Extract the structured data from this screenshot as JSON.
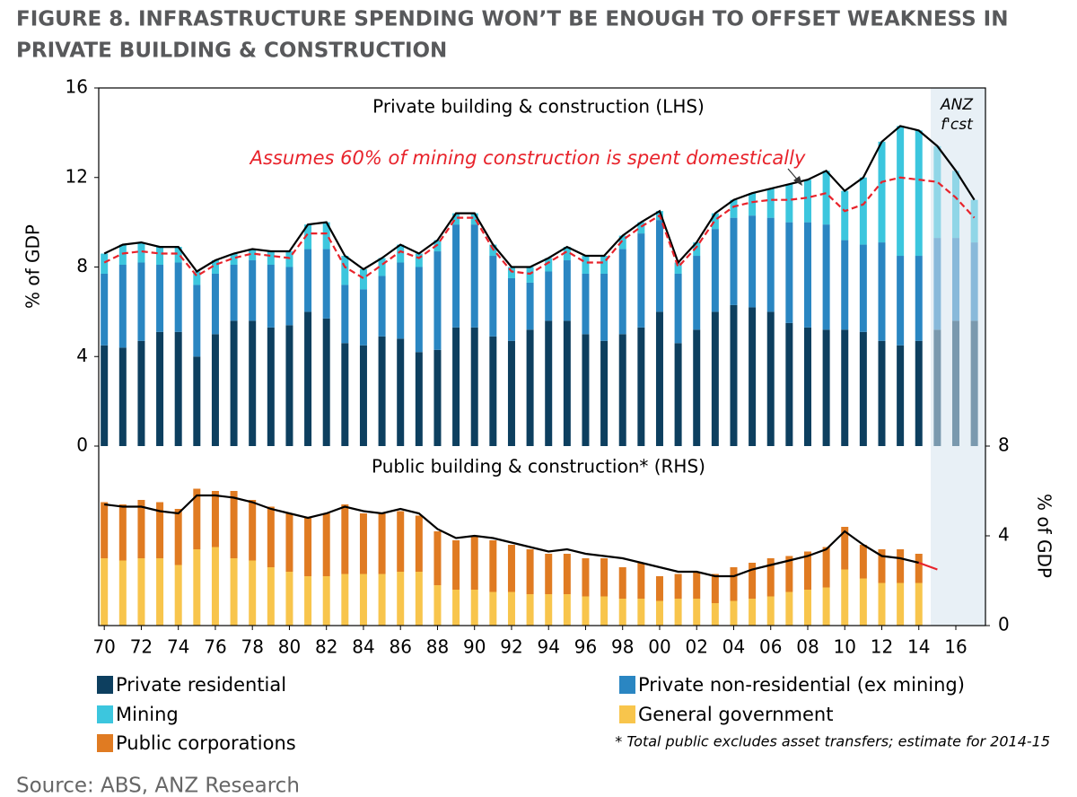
{
  "chart_data": [
    {
      "type": "bar",
      "title": "Private building & construction (LHS)",
      "annotation": "Assumes 60% of mining construction is spent domestically",
      "forecast_label": [
        "ANZ",
        "f'cst"
      ],
      "y_label": "% of GDP",
      "x": [
        1970,
        1971,
        1972,
        1973,
        1974,
        1975,
        1976,
        1977,
        1978,
        1979,
        1980,
        1981,
        1982,
        1983,
        1984,
        1985,
        1986,
        1987,
        1988,
        1989,
        1990,
        1991,
        1992,
        1993,
        1994,
        1995,
        1996,
        1997,
        1998,
        1999,
        2000,
        2001,
        2002,
        2003,
        2004,
        2005,
        2006,
        2007,
        2008,
        2009,
        2010,
        2011,
        2012,
        2013,
        2014,
        2015,
        2016,
        2017
      ],
      "ylim": [
        0,
        16
      ],
      "yticks": [
        0,
        4,
        8,
        12,
        16
      ],
      "series": [
        {
          "name": "Private residential",
          "color": "#0d3f5f",
          "values": [
            4.5,
            4.4,
            4.7,
            5.1,
            5.1,
            4.0,
            5.0,
            5.6,
            5.6,
            5.3,
            5.4,
            6.0,
            5.7,
            4.6,
            4.5,
            4.9,
            4.8,
            4.2,
            4.3,
            5.3,
            5.3,
            4.9,
            4.7,
            5.2,
            5.6,
            5.6,
            5.0,
            4.7,
            5.0,
            5.3,
            6.0,
            4.6,
            5.2,
            6.0,
            6.3,
            6.2,
            6.0,
            5.5,
            5.3,
            5.2,
            5.2,
            5.1,
            4.7,
            4.5,
            4.7,
            5.2,
            5.6,
            5.6
          ]
        },
        {
          "name": "Private non-residential (ex mining)",
          "color": "#2a86c2",
          "values": [
            3.2,
            3.7,
            3.5,
            3.0,
            3.1,
            3.2,
            2.7,
            2.5,
            2.7,
            2.8,
            2.6,
            2.8,
            3.1,
            2.6,
            2.5,
            2.7,
            3.4,
            3.8,
            4.4,
            4.6,
            4.6,
            3.6,
            2.8,
            2.1,
            2.2,
            2.7,
            2.7,
            3.0,
            3.8,
            4.2,
            4.1,
            3.1,
            3.3,
            3.7,
            3.9,
            4.1,
            4.2,
            4.5,
            4.7,
            4.7,
            4.0,
            3.9,
            4.4,
            4.0,
            3.8,
            4.1,
            3.7,
            3.5
          ]
        },
        {
          "name": "Mining",
          "color": "#3cc6de",
          "values": [
            0.9,
            0.9,
            0.9,
            0.8,
            0.7,
            0.6,
            0.6,
            0.5,
            0.5,
            0.6,
            0.7,
            1.1,
            1.2,
            1.3,
            0.9,
            0.8,
            0.8,
            0.6,
            0.5,
            0.5,
            0.5,
            0.5,
            0.5,
            0.7,
            0.6,
            0.6,
            0.8,
            0.8,
            0.6,
            0.5,
            0.4,
            0.5,
            0.6,
            0.7,
            0.8,
            1.0,
            1.3,
            1.7,
            1.9,
            2.4,
            2.2,
            3.0,
            4.5,
            5.8,
            5.6,
            4.1,
            3.0,
            1.9
          ]
        }
      ],
      "lines": [
        {
          "color": "#000000",
          "values": [
            8.6,
            9.0,
            9.1,
            8.9,
            8.9,
            7.8,
            8.3,
            8.6,
            8.8,
            8.7,
            8.7,
            9.9,
            10.0,
            8.5,
            7.9,
            8.4,
            9.0,
            8.6,
            9.2,
            10.4,
            10.4,
            9.0,
            8.0,
            8.0,
            8.4,
            8.9,
            8.5,
            8.5,
            9.4,
            10.0,
            10.5,
            8.2,
            9.1,
            10.4,
            11.0,
            11.3,
            11.5,
            11.7,
            11.9,
            12.3,
            11.4,
            12.0,
            13.6,
            14.3,
            14.1,
            13.4,
            12.3,
            11.0
          ]
        },
        {
          "color": "#e8232b",
          "dash": true,
          "values": [
            8.2,
            8.6,
            8.7,
            8.6,
            8.6,
            7.6,
            8.1,
            8.4,
            8.6,
            8.5,
            8.4,
            9.5,
            9.5,
            8.0,
            7.5,
            8.1,
            8.7,
            8.4,
            9.0,
            10.2,
            10.2,
            8.8,
            7.8,
            7.7,
            8.2,
            8.7,
            8.2,
            8.2,
            9.2,
            9.8,
            10.3,
            8.0,
            8.9,
            10.1,
            10.7,
            10.9,
            11.0,
            11.0,
            11.1,
            11.3,
            10.5,
            10.8,
            11.8,
            12.0,
            11.9,
            11.8,
            11.1,
            10.2
          ]
        }
      ]
    },
    {
      "type": "bar",
      "title": "Public building & construction* (RHS)",
      "y_label": "% of GDP",
      "x": [
        1970,
        1971,
        1972,
        1973,
        1974,
        1975,
        1976,
        1977,
        1978,
        1979,
        1980,
        1981,
        1982,
        1983,
        1984,
        1985,
        1986,
        1987,
        1988,
        1989,
        1990,
        1991,
        1992,
        1993,
        1994,
        1995,
        1996,
        1997,
        1998,
        1999,
        2000,
        2001,
        2002,
        2003,
        2004,
        2005,
        2006,
        2007,
        2008,
        2009,
        2010,
        2011,
        2012,
        2013,
        2014
      ],
      "xlim": [
        1969.7,
        2017.6
      ],
      "xticks": [
        {
          "value": 1970,
          "label": "70"
        },
        {
          "value": 1972,
          "label": "72"
        },
        {
          "value": 1974,
          "label": "74"
        },
        {
          "value": 1976,
          "label": "76"
        },
        {
          "value": 1978,
          "label": "78"
        },
        {
          "value": 1980,
          "label": "80"
        },
        {
          "value": 1982,
          "label": "82"
        },
        {
          "value": 1984,
          "label": "84"
        },
        {
          "value": 1986,
          "label": "86"
        },
        {
          "value": 1988,
          "label": "88"
        },
        {
          "value": 1990,
          "label": "90"
        },
        {
          "value": 1992,
          "label": "92"
        },
        {
          "value": 1994,
          "label": "94"
        },
        {
          "value": 1996,
          "label": "96"
        },
        {
          "value": 1998,
          "label": "98"
        },
        {
          "value": 2000,
          "label": "00"
        },
        {
          "value": 2002,
          "label": "02"
        },
        {
          "value": 2004,
          "label": "04"
        },
        {
          "value": 2006,
          "label": "06"
        },
        {
          "value": 2008,
          "label": "08"
        },
        {
          "value": 2010,
          "label": "10"
        },
        {
          "value": 2012,
          "label": "12"
        },
        {
          "value": 2014,
          "label": "14"
        },
        {
          "value": 2016,
          "label": "16"
        }
      ],
      "y2lim": [
        0,
        8
      ],
      "y2ticks": [
        0,
        4,
        8
      ],
      "series": [
        {
          "name": "General government",
          "color": "#f8c54c",
          "axis": "y2",
          "values": [
            3.0,
            2.9,
            3.0,
            3.0,
            2.7,
            3.4,
            3.5,
            3.0,
            2.9,
            2.6,
            2.4,
            2.2,
            2.2,
            2.3,
            2.3,
            2.3,
            2.4,
            2.4,
            1.8,
            1.6,
            1.6,
            1.5,
            1.5,
            1.4,
            1.4,
            1.4,
            1.3,
            1.3,
            1.2,
            1.2,
            1.1,
            1.2,
            1.2,
            1.0,
            1.1,
            1.2,
            1.3,
            1.5,
            1.6,
            1.7,
            2.5,
            2.1,
            1.9,
            1.9,
            1.9
          ]
        },
        {
          "name": "Public corporations",
          "color": "#e07b22",
          "axis": "y2",
          "values": [
            2.5,
            2.5,
            2.6,
            2.5,
            2.5,
            2.7,
            2.5,
            3.0,
            2.7,
            2.7,
            2.6,
            2.6,
            2.8,
            3.1,
            2.7,
            2.7,
            2.7,
            2.5,
            2.4,
            2.2,
            2.4,
            2.3,
            2.1,
            2.0,
            1.8,
            1.8,
            1.7,
            1.7,
            1.4,
            1.6,
            1.1,
            1.1,
            1.2,
            1.3,
            1.5,
            1.6,
            1.7,
            1.6,
            1.7,
            1.8,
            1.9,
            1.5,
            1.5,
            1.5,
            1.3
          ]
        }
      ],
      "lines": [
        {
          "color": "#000000",
          "values": [
            5.4,
            5.3,
            5.3,
            5.1,
            5.0,
            5.8,
            5.8,
            5.7,
            5.5,
            5.2,
            5.0,
            4.8,
            5.0,
            5.3,
            5.1,
            5.0,
            5.2,
            5.0,
            4.3,
            3.9,
            4.0,
            3.9,
            3.7,
            3.5,
            3.3,
            3.4,
            3.2,
            3.1,
            3.0,
            2.8,
            2.6,
            2.4,
            2.4,
            2.2,
            2.2,
            2.5,
            2.7,
            2.9,
            3.1,
            3.4,
            4.2,
            3.6,
            3.1,
            3.0,
            2.8
          ]
        },
        {
          "color": "#e8232b",
          "x": [
            2014,
            2015
          ],
          "values": [
            2.8,
            2.5
          ]
        }
      ]
    }
  ],
  "header": {
    "title": [
      "FIGURE 8. INFRASTRUCTURE SPENDING WON’T BE ENOUGH TO OFFSET WEAKNESS IN",
      "PRIVATE BUILDING & CONSTRUCTION"
    ]
  },
  "footnote": "* Total public excludes asset transfers; estimate for 2014-15",
  "source": "Source: ABS, ANZ Research"
}
